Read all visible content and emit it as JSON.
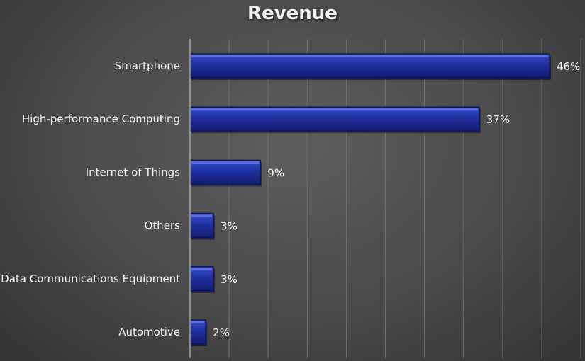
{
  "chart_data": {
    "type": "bar",
    "orientation": "horizontal",
    "title": "Revenue",
    "xlabel": "",
    "ylabel": "",
    "categories": [
      "Smartphone",
      "High-performance Computing",
      "Internet of Things",
      "Others",
      "Data Communications Equipment",
      "Automotive"
    ],
    "values": [
      46,
      37,
      9,
      3,
      3,
      2
    ],
    "data_labels": [
      "46%",
      "37%",
      "9%",
      "3%",
      "3%",
      "2%"
    ],
    "unit": "%",
    "xlim": [
      0,
      50
    ],
    "grid": true,
    "legend": "none",
    "bar_color": "#1f2f9e",
    "bar_edge_color": "#0d1560"
  }
}
